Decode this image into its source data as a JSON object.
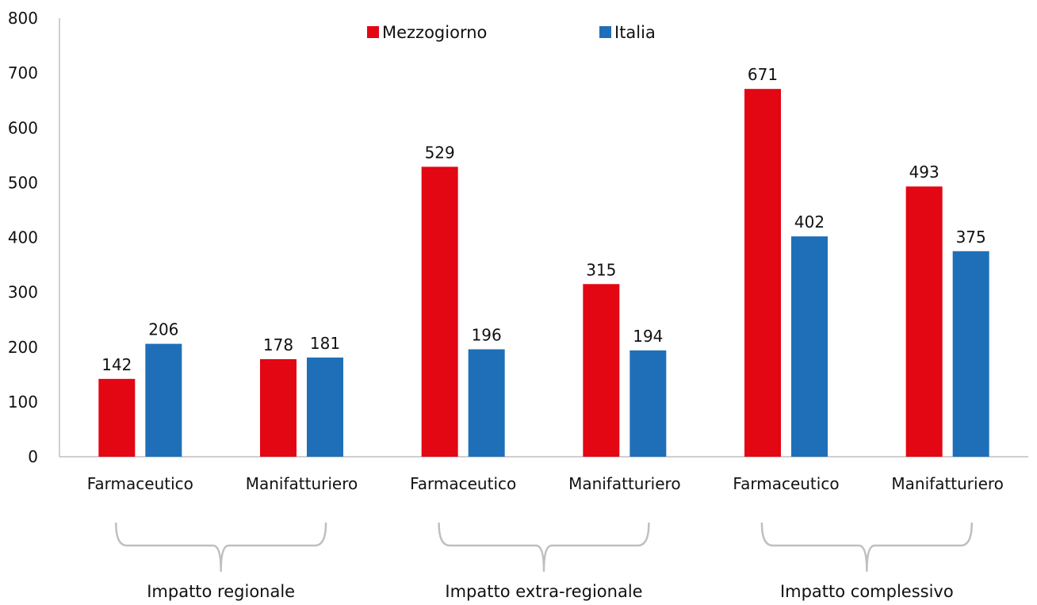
{
  "chart_data": {
    "type": "bar",
    "categories": [
      "Farmaceutico",
      "Manifatturiero",
      "Farmaceutico",
      "Manifatturiero",
      "Farmaceutico",
      "Manifatturiero"
    ],
    "series": [
      {
        "name": "Mezzogiorno",
        "color": "#e30613",
        "values": [
          142,
          178,
          529,
          315,
          671,
          493
        ]
      },
      {
        "name": "Italia",
        "color": "#1f6fb8",
        "values": [
          206,
          181,
          196,
          194,
          402,
          375
        ]
      }
    ],
    "category_groups": [
      {
        "label": "Impatto regionale",
        "categories": [
          0,
          1
        ]
      },
      {
        "label": "Impatto extra-regionale",
        "categories": [
          2,
          3
        ]
      },
      {
        "label": "Impatto complessivo",
        "categories": [
          4,
          5
        ]
      }
    ],
    "ylim": [
      0,
      800
    ],
    "yticks": [
      0,
      100,
      200,
      300,
      400,
      500,
      600,
      700,
      800
    ],
    "grid": false,
    "legend_position": "top-center",
    "data_labels": true,
    "axis_color": "#bfbfbf"
  }
}
